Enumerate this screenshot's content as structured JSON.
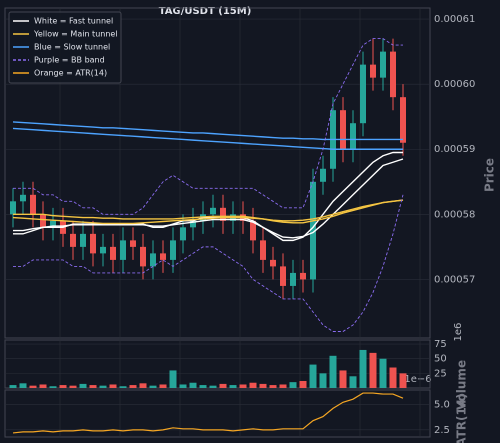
{
  "chart_data": [
    {
      "type": "candlestick",
      "title": "TAG/USDT (15M)",
      "y_label": "Price",
      "ylim": [
        0.000561,
        0.0006117
      ],
      "yticks": [
        0.00057,
        0.00058,
        0.00059,
        {
          "value": 0.0006,
          "label": "0.00060"
        },
        0.00061
      ],
      "grid": true,
      "up_color": "#26a69a",
      "down_color": "#ef5350",
      "legend": "upper left",
      "open": [
        0.00058,
        0.000582,
        0.000583,
        0.00058,
        0.000578,
        0.000579,
        0.000577,
        0.000575,
        0.000577,
        0.000574,
        0.000575,
        0.000573,
        0.000576,
        0.000575,
        0.000572,
        0.000574,
        0.000573,
        0.000576,
        0.000578,
        0.000579,
        0.00058,
        0.000581,
        0.000579,
        0.00058,
        0.000579,
        0.000576,
        0.000573,
        0.000572,
        0.000569,
        0.000571,
        0.00057,
        0.000585,
        0.000587,
        0.000596,
        0.00059,
        0.000594,
        0.000603,
        0.000601,
        0.000605,
        0.000598
      ],
      "high": [
        0.000584,
        0.000585,
        0.000585,
        0.000582,
        0.000581,
        0.000581,
        0.000579,
        0.000579,
        0.000579,
        0.000577,
        0.000577,
        0.000578,
        0.000578,
        0.000577,
        0.000576,
        0.000576,
        0.000578,
        0.00058,
        0.000581,
        0.000582,
        0.000583,
        0.000583,
        0.000582,
        0.000582,
        0.000581,
        0.000578,
        0.000575,
        0.000574,
        0.000573,
        0.000573,
        0.000587,
        0.000589,
        0.000598,
        0.000598,
        0.000596,
        0.000605,
        0.000607,
        0.000607,
        0.000607,
        0.0006
      ],
      "low": [
        0.000578,
        0.00058,
        0.000578,
        0.000576,
        0.000576,
        0.000575,
        0.000573,
        0.000573,
        0.000572,
        0.000572,
        0.000571,
        0.000571,
        0.000573,
        0.00057,
        0.00057,
        0.000571,
        0.000571,
        0.000574,
        0.000576,
        0.000577,
        0.000578,
        0.000577,
        0.000577,
        0.000577,
        0.000574,
        0.000571,
        0.00057,
        0.000567,
        0.000567,
        0.000568,
        0.000568,
        0.000583,
        0.000585,
        0.000588,
        0.000588,
        0.000592,
        0.000599,
        0.000599,
        0.000596,
        0.000589
      ],
      "close": [
        0.000582,
        0.000583,
        0.00058,
        0.000578,
        0.000579,
        0.000577,
        0.000575,
        0.000577,
        0.000574,
        0.000575,
        0.000573,
        0.000576,
        0.000575,
        0.000572,
        0.000574,
        0.000573,
        0.000576,
        0.000578,
        0.000579,
        0.00058,
        0.000581,
        0.000579,
        0.00058,
        0.000579,
        0.000576,
        0.000573,
        0.000572,
        0.000569,
        0.000571,
        0.00057,
        0.000585,
        0.000587,
        0.000596,
        0.00059,
        0.000594,
        0.000603,
        0.000601,
        0.000605,
        0.000598,
        0.000591
      ],
      "overlays": [
        {
          "name": "White = Fast tunnel",
          "color": "#ffffff",
          "dashed": false,
          "lines": [
            [
              0.000577,
              0.000577,
              0.0005775,
              0.000578,
              0.000578,
              0.000578,
              0.0005785,
              0.0005785,
              0.0005785,
              0.0005785,
              0.0005785,
              0.0005785,
              0.0005785,
              0.0005785,
              0.000578,
              0.000578,
              0.0005785,
              0.000579,
              0.000579,
              0.0005795,
              0.0005795,
              0.0005795,
              0.0005795,
              0.0005795,
              0.000579,
              0.000578,
              0.000577,
              0.000576,
              0.000576,
              0.0005765,
              0.000578,
              0.00058,
              0.000582,
              0.0005835,
              0.000585,
              0.0005865,
              0.000588,
              0.000589,
              0.0005895,
              0.0005895
            ],
            [
              0.0005775,
              0.0005775,
              0.0005778,
              0.000578,
              0.0005782,
              0.0005782,
              0.0005784,
              0.0005784,
              0.0005784,
              0.0005784,
              0.0005784,
              0.0005784,
              0.0005784,
              0.0005784,
              0.0005782,
              0.0005782,
              0.0005784,
              0.0005786,
              0.0005788,
              0.000579,
              0.0005792,
              0.0005792,
              0.0005792,
              0.0005792,
              0.0005788,
              0.000578,
              0.0005772,
              0.0005765,
              0.0005764,
              0.0005766,
              0.0005772,
              0.0005785,
              0.00058,
              0.0005815,
              0.000583,
              0.0005845,
              0.000586,
              0.0005875,
              0.000588,
              0.0005885
            ]
          ]
        },
        {
          "name": "Yellow = Main tunnel",
          "color": "#f5c542",
          "dashed": false,
          "lines": [
            [
              0.00058,
              0.00058,
              0.00058,
              0.00058,
              0.0005798,
              0.0005797,
              0.0005796,
              0.0005795,
              0.0005795,
              0.0005794,
              0.0005794,
              0.0005793,
              0.0005793,
              0.0005793,
              0.0005793,
              0.0005793,
              0.0005793,
              0.0005794,
              0.0005795,
              0.0005796,
              0.0005797,
              0.0005797,
              0.0005797,
              0.0005797,
              0.0005795,
              0.0005793,
              0.000579,
              0.0005788,
              0.0005787,
              0.0005787,
              0.000579,
              0.0005793,
              0.0005797,
              0.0005802,
              0.0005806,
              0.000581,
              0.0005814,
              0.0005818,
              0.000582,
              0.0005822
            ],
            [
              0.0005795,
              0.0005794,
              0.0005793,
              0.0005792,
              0.0005791,
              0.000579,
              0.0005789,
              0.0005788,
              0.0005787,
              0.0005786,
              0.0005786,
              0.0005786,
              0.0005786,
              0.0005787,
              0.0005788,
              0.0005789,
              0.000579,
              0.0005791,
              0.0005792,
              0.0005793,
              0.0005794,
              0.0005795,
              0.0005795,
              0.0005795,
              0.0005794,
              0.0005793,
              0.0005791,
              0.000579,
              0.000579,
              0.0005791,
              0.0005793,
              0.0005796,
              0.00058,
              0.0005804,
              0.0005808,
              0.0005812,
              0.0005815,
              0.0005818,
              0.000582,
              0.0005822
            ]
          ]
        },
        {
          "name": "Blue = Slow tunnel",
          "color": "#4da3ff",
          "dashed": false,
          "lines": [
            [
              0.0005942,
              0.0005941,
              0.000594,
              0.0005939,
              0.0005938,
              0.0005937,
              0.0005936,
              0.0005935,
              0.0005934,
              0.0005933,
              0.0005933,
              0.0005932,
              0.0005931,
              0.000593,
              0.0005929,
              0.0005928,
              0.0005927,
              0.0005926,
              0.0005925,
              0.0005925,
              0.0005924,
              0.0005923,
              0.0005922,
              0.0005921,
              0.000592,
              0.0005919,
              0.0005918,
              0.0005917,
              0.0005917,
              0.0005916,
              0.0005916,
              0.0005915,
              0.0005915,
              0.0005915,
              0.0005915,
              0.0005915,
              0.0005915,
              0.0005915,
              0.0005915,
              0.0005915
            ],
            [
              0.0005932,
              0.0005931,
              0.000593,
              0.0005929,
              0.0005928,
              0.0005927,
              0.0005926,
              0.0005925,
              0.0005924,
              0.0005923,
              0.0005922,
              0.0005921,
              0.000592,
              0.0005919,
              0.0005918,
              0.0005917,
              0.0005916,
              0.0005915,
              0.0005914,
              0.0005913,
              0.0005912,
              0.0005911,
              0.000591,
              0.0005909,
              0.0005908,
              0.0005907,
              0.0005906,
              0.0005905,
              0.0005904,
              0.0005903,
              0.0005902,
              0.0005901,
              0.00059,
              0.00059,
              0.00059,
              0.00059,
              0.00059,
              0.00059,
              0.00059,
              0.00059
            ]
          ]
        },
        {
          "name": "Purple = BB band",
          "color": "#8a6cf0",
          "dashed": true,
          "lines": [
            [
              0.000584,
              0.000584,
              0.000584,
              0.000583,
              0.000583,
              0.000582,
              0.000582,
              0.000581,
              0.000581,
              0.00058,
              0.00058,
              0.00058,
              0.00058,
              0.000581,
              0.000583,
              0.000585,
              0.000586,
              0.000585,
              0.000584,
              0.000584,
              0.000584,
              0.000584,
              0.000584,
              0.000584,
              0.000584,
              0.000583,
              0.000582,
              0.000581,
              0.000581,
              0.000581,
              0.000585,
              0.00059,
              0.000597,
              0.0006,
              0.000603,
              0.000606,
              0.000607,
              0.000607,
              0.000606,
              0.000606
            ],
            [
              0.000572,
              0.000572,
              0.000573,
              0.000573,
              0.000573,
              0.000573,
              0.000572,
              0.000572,
              0.000571,
              0.000571,
              0.000571,
              0.000571,
              0.000571,
              0.000571,
              0.000572,
              0.000573,
              0.000572,
              0.000573,
              0.000574,
              0.000575,
              0.000575,
              0.000574,
              0.000573,
              0.000572,
              0.00057,
              0.000569,
              0.000568,
              0.000567,
              0.000567,
              0.000567,
              0.000565,
              0.000563,
              0.000562,
              0.000562,
              0.000563,
              0.000565,
              0.000568,
              0.000572,
              0.000577,
              0.000583
            ]
          ]
        }
      ]
    },
    {
      "type": "bar",
      "y_label": "Volume",
      "offset_label": "1e6",
      "ylim": [
        0,
        82
      ],
      "yticks": [
        25,
        50,
        75
      ],
      "values": [
        5,
        8,
        4,
        6,
        3,
        5,
        4,
        7,
        5,
        4,
        6,
        3,
        5,
        8,
        4,
        6,
        30,
        6,
        9,
        5,
        4,
        7,
        5,
        6,
        9,
        7,
        5,
        6,
        10,
        12,
        40,
        25,
        55,
        30,
        20,
        65,
        60,
        50,
        35,
        25
      ]
    },
    {
      "type": "line",
      "y_label": "ATR(14)",
      "offset_label": "1e−6",
      "ylim": [
        1.8,
        6.4
      ],
      "yticks": [
        2.5,
        {
          "value": 5,
          "label": "5.0"
        }
      ],
      "series": [
        {
          "name": "Orange = ATR(14)",
          "color": "#f5a623",
          "values": [
            2.2,
            2.3,
            2.3,
            2.4,
            2.3,
            2.4,
            2.4,
            2.5,
            2.4,
            2.4,
            2.5,
            2.4,
            2.5,
            2.5,
            2.4,
            2.5,
            2.7,
            2.6,
            2.6,
            2.5,
            2.5,
            2.5,
            2.4,
            2.5,
            2.6,
            2.5,
            2.5,
            2.6,
            2.6,
            2.6,
            3.4,
            3.8,
            4.6,
            5.2,
            5.5,
            6.1,
            6.1,
            6,
            6,
            5.6
          ]
        }
      ]
    }
  ]
}
